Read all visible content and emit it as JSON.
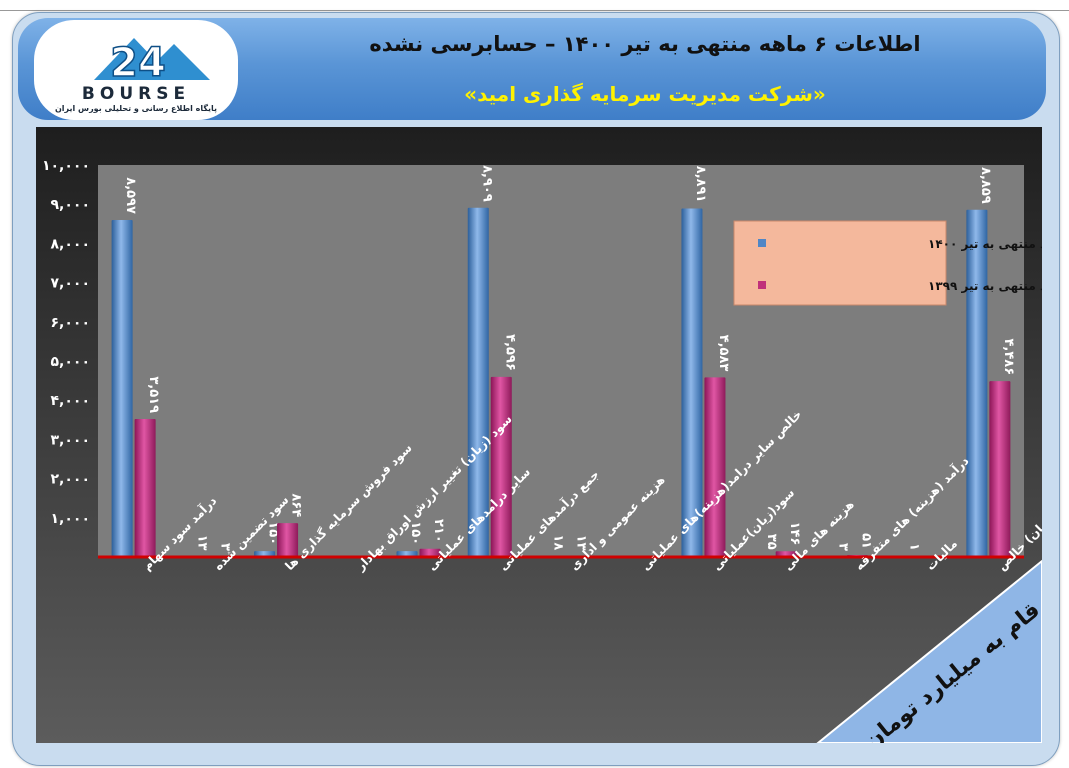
{
  "header": {
    "title": "اطلاعات ۶ ماهه منتهی به تیر ۱۴۰۰ – حسابرسی نشده",
    "subtitle": "«شرکت مدیریت سرمایه گذاری امید»"
  },
  "logo": {
    "number": "24",
    "word": "BOURSE",
    "tagline": "پایگاه اطلاع رسانی و تحلیلی بورس ایران"
  },
  "colors": {
    "series1": "#4f86c6",
    "series2": "#c0307a",
    "plot_bg": "#7d7d7d",
    "axis_line": "#d00000",
    "legend_bg": "#f4b89c",
    "banner_bg": "#8fb6e6"
  },
  "chart_data": {
    "type": "bar",
    "categories": [
      "درآمد سود سهام",
      "سود تضمین شده",
      "سود فروش سرمایه گذاری ها",
      "سود (زیان) تغییر ارزش اوراق بهادار",
      "سایر درامدهای عملیاتی",
      "جمع درآمدهای عملیاتی",
      "هزینه عمومی و اداری",
      "خالص سایر درامد(هزینه)های عملیاتی",
      "سود(زیان)عملیاتی",
      "هزینه های مالی",
      "درآمد (هزینه) های متفرقه",
      "مالیات",
      "سود(زیان) خالص"
    ],
    "series": [
      {
        "name": "عملکرد منتهی به تیر ۱۴۰۰",
        "values": [
          8597,
          13,
          150,
          0,
          150,
          8909,
          18,
          0,
          8891,
          35,
          3,
          1,
          8859
        ],
        "labels": [
          "۸,۵۹۷",
          "۱۳",
          "۱۵۰",
          "",
          "۱۵۰",
          "۸,۹۰۹",
          "۱۸",
          "",
          "۸,۸۹۱",
          "۳۵",
          "۳",
          "۱",
          "۸,۸۵۹"
        ]
      },
      {
        "name": "عملکرد منتهی به تیر ۱۳۹۹",
        "values": [
          3519,
          3,
          864,
          0,
          210,
          4596,
          13,
          0,
          4583,
          146,
          51,
          0,
          4486
        ],
        "labels": [
          "۳,۵۱۹",
          "۳",
          "۸۶۴",
          "",
          "۲۱۰",
          "۴,۵۹۶",
          "۱۳",
          "",
          "۴,۵۸۳",
          "۱۴۶",
          "۵۱",
          "",
          "۴,۴۸۶"
        ]
      }
    ],
    "yticks": [
      0,
      1000,
      2000,
      3000,
      4000,
      5000,
      6000,
      7000,
      8000,
      9000,
      10000
    ],
    "ytick_labels": [
      "",
      "۱,۰۰۰",
      "۲,۰۰۰",
      "۳,۰۰۰",
      "۴,۰۰۰",
      "۵,۰۰۰",
      "۶,۰۰۰",
      "۷,۰۰۰",
      "۸,۰۰۰",
      "۹,۰۰۰",
      "۱۰,۰۰۰"
    ],
    "ylim": [
      0,
      10000
    ],
    "legend_position": "top-right",
    "grid": false,
    "annotation": "ارقام به میلیارد تومان"
  }
}
